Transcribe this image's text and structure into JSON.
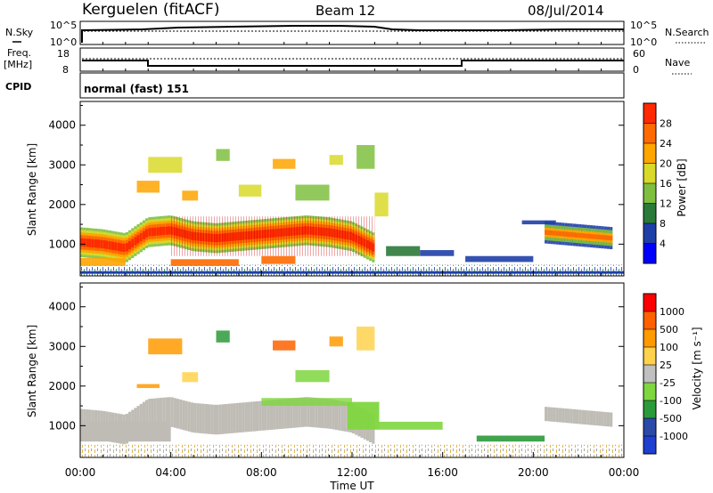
{
  "header": {
    "station": "Kerguelen (fitACF)",
    "beam": "Beam 12",
    "date": "08/Jul/2014"
  },
  "panels": {
    "nsky": {
      "left_label": "N.Sky",
      "right_label": "N.Search",
      "left_ticks": [
        "10^5",
        "10^0"
      ],
      "right_ticks": [
        "10^5",
        "10^0"
      ]
    },
    "freq": {
      "left_label_1": "Freq.",
      "left_label_2": "[MHz]",
      "right_label": "Nave",
      "left_ticks": [
        "18",
        "8"
      ],
      "right_ticks": [
        "60",
        "0"
      ]
    },
    "cpid": {
      "label": "CPID",
      "value": "normal (fast) 151"
    }
  },
  "colors": {
    "power": [
      "#0000ff",
      "#1f3fa8",
      "#2b7a3a",
      "#7fbf3f",
      "#d9d92a",
      "#ffa500",
      "#ff6a00",
      "#ff2a00"
    ],
    "velocity": [
      "#ff0000",
      "#ff6000",
      "#ff9a00",
      "#ffd24d",
      "#c0c0c0",
      "#7fd63f",
      "#2b9a3a",
      "#2b4aa8",
      "#1f3fd0"
    ],
    "ground_scatter": "#bfbcb5"
  },
  "chart_data": [
    {
      "type": "heatmap",
      "name": "power",
      "ylabel": "Slant Range [km]",
      "xlabel": "",
      "ylim": [
        200,
        4600
      ],
      "yticks": [
        1000,
        2000,
        3000,
        4000
      ],
      "xlim": [
        0,
        24
      ],
      "colorbar": {
        "label": "Power [dB]",
        "range": [
          0,
          32
        ],
        "ticks": [
          "4",
          "8",
          "12",
          "16",
          "20",
          "24",
          "28"
        ]
      },
      "series": [
        {
          "x": [
            0,
            1,
            2,
            3,
            4,
            5,
            6,
            7,
            8,
            9,
            10,
            11,
            12,
            13
          ],
          "y": [
            1050,
            1000,
            900,
            1300,
            1350,
            1200,
            1150,
            1200,
            1250,
            1300,
            1350,
            1300,
            1200,
            900
          ]
        },
        {
          "x": [
            20.5,
            21.5,
            22.5,
            23.5
          ],
          "y": [
            1300,
            1250,
            1200,
            1150
          ]
        }
      ]
    },
    {
      "type": "heatmap",
      "name": "velocity",
      "ylabel": "Slant Range [km]",
      "xlabel": "Time UT",
      "ylim": [
        200,
        4600
      ],
      "yticks": [
        1000,
        2000,
        3000,
        4000
      ],
      "xlim": [
        0,
        24
      ],
      "xticks": [
        "00:00",
        "04:00",
        "08:00",
        "12:00",
        "16:00",
        "20:00",
        "00:00"
      ],
      "colorbar": {
        "label": "Velocity [m s⁻¹]",
        "ticks": [
          "1000",
          "500",
          "100",
          "25",
          "-25",
          "-100",
          "-500",
          "-1000"
        ]
      }
    }
  ]
}
